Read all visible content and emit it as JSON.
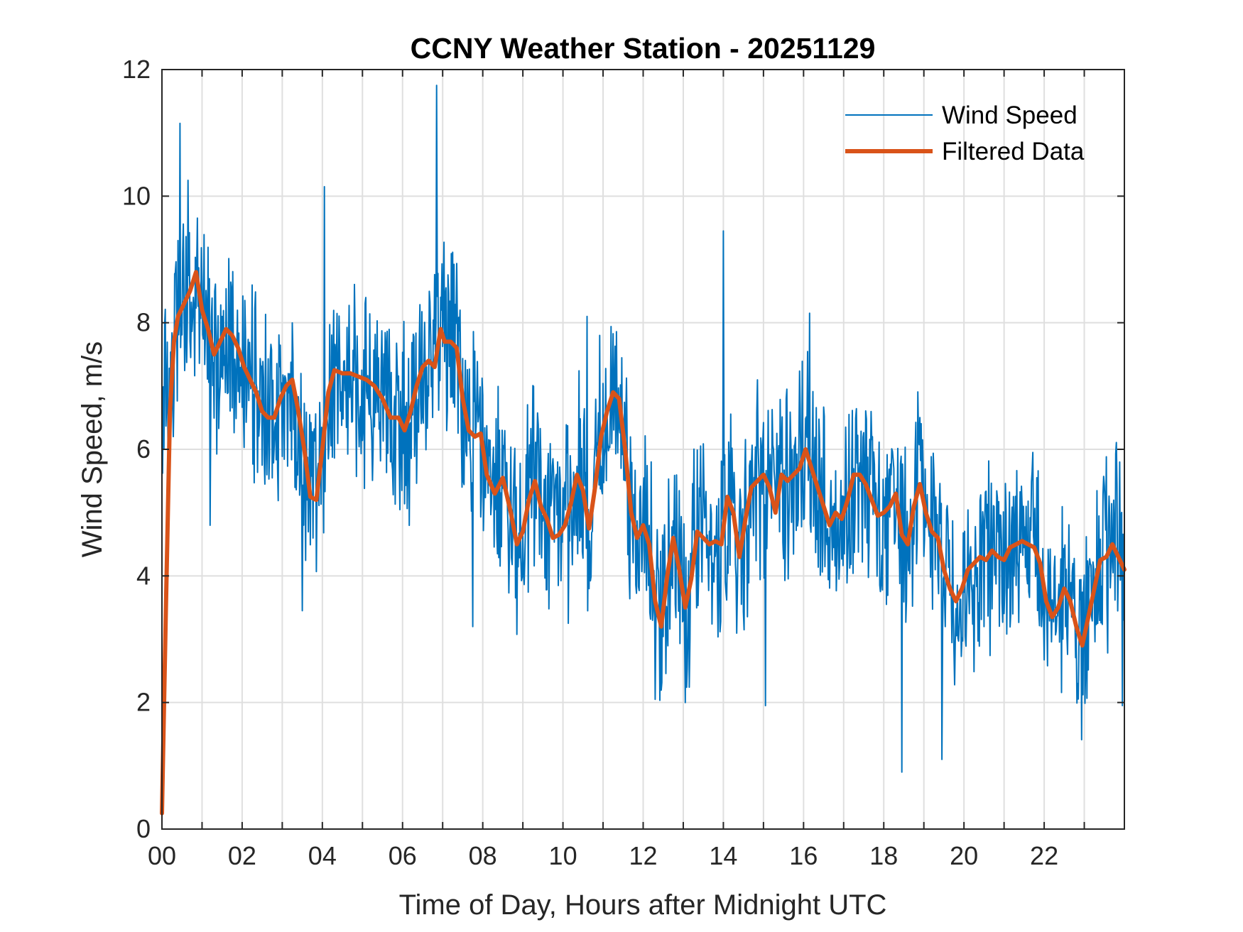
{
  "chart_data": {
    "type": "line",
    "title": "CCNY Weather Station - 20251129",
    "xlabel": "Time of Day, Hours after Midnight UTC",
    "ylabel": "Wind Speed, m/s",
    "xlim": [
      0,
      24
    ],
    "ylim": [
      0,
      12
    ],
    "grid": true,
    "legend_position": "top-right",
    "x_ticks": [
      0,
      2,
      4,
      6,
      8,
      10,
      12,
      14,
      16,
      18,
      20,
      22
    ],
    "x_tick_labels": [
      "00",
      "02",
      "04",
      "06",
      "08",
      "10",
      "12",
      "14",
      "16",
      "18",
      "20",
      "22"
    ],
    "x_minor_grid_step": 1,
    "y_ticks": [
      0,
      2,
      4,
      6,
      8,
      10,
      12
    ],
    "y_tick_labels": [
      "0",
      "2",
      "4",
      "6",
      "8",
      "10",
      "12"
    ],
    "series": [
      {
        "name": "Wind Speed",
        "color": "#0072BD",
        "style": "thin",
        "noise_amplitude": 1.5,
        "spikes": [
          {
            "x": 0.45,
            "y": 11.15
          },
          {
            "x": 0.65,
            "y": 10.25
          },
          {
            "x": 1.2,
            "y": 4.8
          },
          {
            "x": 3.5,
            "y": 3.45
          },
          {
            "x": 4.05,
            "y": 10.15
          },
          {
            "x": 6.85,
            "y": 11.75
          },
          {
            "x": 7.75,
            "y": 3.2
          },
          {
            "x": 10.6,
            "y": 8.1
          },
          {
            "x": 12.3,
            "y": 2.05
          },
          {
            "x": 13.05,
            "y": 2.0
          },
          {
            "x": 14.0,
            "y": 9.45
          },
          {
            "x": 15.05,
            "y": 1.95
          },
          {
            "x": 16.15,
            "y": 8.15
          },
          {
            "x": 18.45,
            "y": 0.9
          },
          {
            "x": 19.45,
            "y": 1.1
          },
          {
            "x": 23.95,
            "y": 1.95
          }
        ]
      },
      {
        "name": "Filtered Data",
        "color": "#D95319",
        "style": "thick",
        "x": [
          0.0,
          0.1,
          0.2,
          0.3,
          0.4,
          0.55,
          0.7,
          0.85,
          1.0,
          1.15,
          1.3,
          1.45,
          1.6,
          1.75,
          1.9,
          2.05,
          2.2,
          2.35,
          2.5,
          2.65,
          2.8,
          2.95,
          3.1,
          3.25,
          3.4,
          3.55,
          3.7,
          3.85,
          4.0,
          4.15,
          4.3,
          4.5,
          4.7,
          4.9,
          5.1,
          5.3,
          5.5,
          5.7,
          5.9,
          6.05,
          6.2,
          6.35,
          6.5,
          6.65,
          6.8,
          6.95,
          7.05,
          7.2,
          7.35,
          7.5,
          7.65,
          7.8,
          7.95,
          8.1,
          8.3,
          8.5,
          8.7,
          8.85,
          9.0,
          9.15,
          9.3,
          9.45,
          9.6,
          9.75,
          9.9,
          10.05,
          10.2,
          10.35,
          10.5,
          10.65,
          10.8,
          10.95,
          11.1,
          11.25,
          11.4,
          11.55,
          11.7,
          11.85,
          12.0,
          12.15,
          12.3,
          12.45,
          12.6,
          12.75,
          12.9,
          13.05,
          13.2,
          13.35,
          13.5,
          13.65,
          13.8,
          13.95,
          14.1,
          14.25,
          14.4,
          14.55,
          14.7,
          14.85,
          15.0,
          15.15,
          15.3,
          15.45,
          15.6,
          15.75,
          15.9,
          16.05,
          16.2,
          16.35,
          16.5,
          16.65,
          16.8,
          16.95,
          17.1,
          17.25,
          17.4,
          17.55,
          17.7,
          17.85,
          18.0,
          18.15,
          18.3,
          18.45,
          18.6,
          18.75,
          18.9,
          19.05,
          19.2,
          19.35,
          19.5,
          19.65,
          19.8,
          19.95,
          20.1,
          20.25,
          20.4,
          20.55,
          20.7,
          20.85,
          21.0,
          21.15,
          21.3,
          21.45,
          21.6,
          21.75,
          21.9,
          22.05,
          22.2,
          22.35,
          22.5,
          22.65,
          22.8,
          22.95,
          23.1,
          23.25,
          23.4,
          23.55,
          23.7,
          23.85,
          24.0
        ],
        "y": [
          0.25,
          3.5,
          6.6,
          7.7,
          8.1,
          8.3,
          8.5,
          8.8,
          8.2,
          7.9,
          7.5,
          7.7,
          7.9,
          7.8,
          7.6,
          7.3,
          7.1,
          6.9,
          6.6,
          6.5,
          6.5,
          6.8,
          7.0,
          7.1,
          6.6,
          6.0,
          5.25,
          5.2,
          6.0,
          6.9,
          7.25,
          7.2,
          7.2,
          7.15,
          7.1,
          7.0,
          6.8,
          6.5,
          6.5,
          6.3,
          6.6,
          7.0,
          7.3,
          7.4,
          7.3,
          7.9,
          7.7,
          7.7,
          7.6,
          6.8,
          6.3,
          6.2,
          6.25,
          5.6,
          5.3,
          5.55,
          5.0,
          4.5,
          4.7,
          5.2,
          5.5,
          5.1,
          4.9,
          4.6,
          4.65,
          4.8,
          5.15,
          5.6,
          5.35,
          4.75,
          5.4,
          6.2,
          6.6,
          6.9,
          6.8,
          6.0,
          5.0,
          4.6,
          4.8,
          4.5,
          3.6,
          3.2,
          4.0,
          4.6,
          4.1,
          3.5,
          3.95,
          4.7,
          4.6,
          4.5,
          4.55,
          4.5,
          5.25,
          5.0,
          4.3,
          4.9,
          5.4,
          5.5,
          5.6,
          5.4,
          5.0,
          5.6,
          5.5,
          5.6,
          5.7,
          6.0,
          5.7,
          5.4,
          5.1,
          4.8,
          5.0,
          4.9,
          5.2,
          5.6,
          5.6,
          5.45,
          5.2,
          4.95,
          5.0,
          5.1,
          5.3,
          4.65,
          4.5,
          5.1,
          5.45,
          5.0,
          4.7,
          4.6,
          4.1,
          3.8,
          3.6,
          3.8,
          4.1,
          4.2,
          4.3,
          4.25,
          4.4,
          4.3,
          4.25,
          4.45,
          4.5,
          4.55,
          4.5,
          4.45,
          4.2,
          3.6,
          3.35,
          3.5,
          3.8,
          3.6,
          3.2,
          2.9,
          3.35,
          3.8,
          4.25,
          4.3,
          4.5,
          4.3,
          4.1
        ]
      }
    ]
  }
}
